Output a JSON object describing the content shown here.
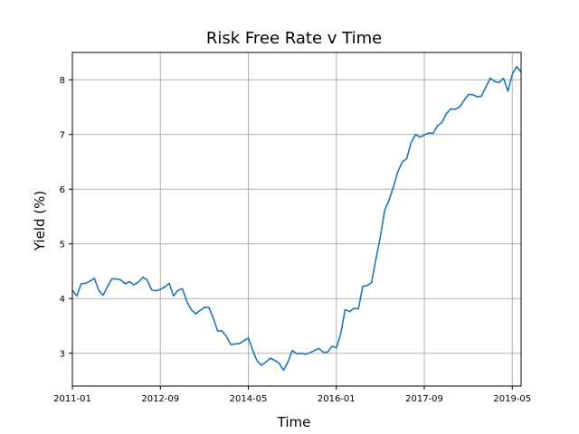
{
  "chart_data": {
    "type": "line",
    "title": "Risk Free Rate v Time",
    "xlabel": "Time",
    "ylabel": "Yield (%)",
    "grid": true,
    "x_tick_labels": [
      "2011-01",
      "2012-09",
      "2014-05",
      "2016-01",
      "2017-09",
      "2019-05"
    ],
    "y_tick_labels": [
      "3",
      "4",
      "5",
      "6",
      "7",
      "8"
    ],
    "xlim": [
      0,
      102
    ],
    "ylim": [
      2.4,
      8.5
    ],
    "x_ticks_months": [
      0,
      20,
      40,
      60,
      80,
      100
    ],
    "y_ticks": [
      3,
      4,
      5,
      6,
      7,
      8
    ],
    "series": [
      {
        "name": "Yield",
        "color": "#1f77b4",
        "x_months": [
          0,
          1,
          2,
          3,
          4,
          5,
          6,
          7,
          8,
          9,
          10,
          11,
          12,
          13,
          14,
          15,
          16,
          17,
          18,
          19,
          20,
          21,
          22,
          23,
          24,
          25,
          26,
          27,
          28,
          29,
          30,
          31,
          32,
          33,
          34,
          35,
          36,
          37,
          38,
          39,
          40,
          41,
          42,
          43,
          44,
          45,
          46,
          47,
          48,
          49,
          50,
          51,
          52,
          53,
          54,
          55,
          56,
          57,
          58,
          59,
          60,
          61,
          62,
          63,
          64,
          65,
          66,
          67,
          68,
          69,
          70,
          71,
          72,
          73,
          74,
          75,
          76,
          77,
          78,
          79,
          80,
          81,
          82,
          83,
          84,
          85,
          86,
          87,
          88,
          89,
          90,
          91,
          92,
          93,
          94,
          95,
          96,
          97,
          98,
          99,
          100,
          101,
          102
        ],
        "values": [
          4.15,
          4.05,
          4.27,
          4.28,
          4.32,
          4.37,
          4.15,
          4.06,
          4.22,
          4.36,
          4.36,
          4.34,
          4.27,
          4.31,
          4.25,
          4.3,
          4.39,
          4.34,
          4.16,
          4.14,
          4.17,
          4.21,
          4.28,
          4.05,
          4.15,
          4.18,
          3.95,
          3.8,
          3.72,
          3.78,
          3.84,
          3.84,
          3.65,
          3.41,
          3.41,
          3.31,
          3.16,
          3.17,
          3.18,
          3.23,
          3.28,
          3.05,
          2.86,
          2.78,
          2.84,
          2.91,
          2.87,
          2.82,
          2.69,
          2.84,
          3.05,
          2.99,
          3.0,
          2.98,
          3.01,
          3.05,
          3.09,
          3.02,
          3.02,
          3.13,
          3.1,
          3.35,
          3.8,
          3.76,
          3.82,
          3.81,
          4.22,
          4.24,
          4.29,
          4.72,
          5.13,
          5.62,
          5.8,
          6.05,
          6.32,
          6.5,
          6.56,
          6.85,
          7.0,
          6.95,
          6.99,
          7.03,
          7.02,
          7.16,
          7.22,
          7.38,
          7.47,
          7.46,
          7.5,
          7.62,
          7.73,
          7.73,
          7.69,
          7.7,
          7.87,
          8.03,
          7.97,
          7.95,
          8.03,
          7.79,
          8.1,
          8.24,
          8.14
        ]
      }
    ]
  }
}
